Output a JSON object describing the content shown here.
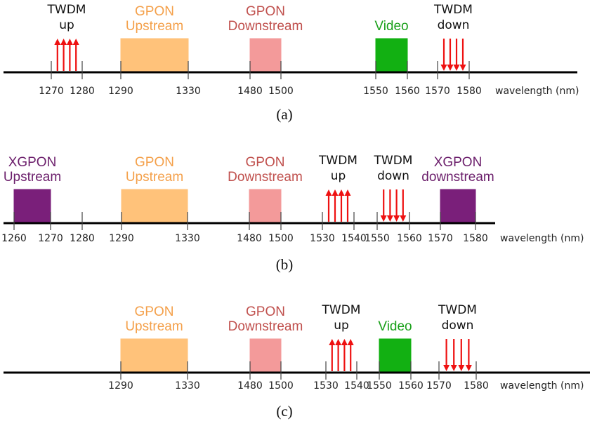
{
  "axis_unit_label": "wavelength (nm)",
  "colors": {
    "gpon_up": "#ffc27a",
    "gpon_down": "#f39a9a",
    "video": "#12b012",
    "xgpon": "#7a1f7a",
    "twdm_arrow": "#ee1111",
    "gpon_up_text": "#f4a04a",
    "gpon_down_text": "#c0504d",
    "video_text": "#1aa01a",
    "xgpon_text": "#6b1e6b"
  },
  "panels": [
    {
      "caption": "(a)",
      "ticks": [
        {
          "value": 1270,
          "label": "1270"
        },
        {
          "value": 1280,
          "label": "1280"
        },
        {
          "value": 1290,
          "label": "1290"
        },
        {
          "value": 1330,
          "label": "1330"
        },
        {
          "value": 1480,
          "label": "1480"
        },
        {
          "value": 1500,
          "label": "1500"
        },
        {
          "value": 1550,
          "label": "1550"
        },
        {
          "value": 1560,
          "label": "1560"
        },
        {
          "value": 1570,
          "label": "1570"
        },
        {
          "value": 1580,
          "label": "1580"
        }
      ],
      "bands": [
        {
          "id": "gpon-up",
          "start": 1290,
          "end": 1330,
          "color": "gpon_up",
          "text_color": "gpon_up_text",
          "label": [
            "GPON",
            "Upstream"
          ]
        },
        {
          "id": "gpon-down",
          "start": 1480,
          "end": 1500,
          "color": "gpon_down",
          "text_color": "gpon_down_text",
          "label": [
            "GPON",
            "Downstream"
          ]
        },
        {
          "id": "video",
          "start": 1550,
          "end": 1560,
          "color": "video",
          "text_color": "video_text",
          "label": [
            "Video"
          ]
        }
      ],
      "arrows": [
        {
          "id": "twdm-up",
          "start": 1270,
          "end": 1280,
          "direction": "up",
          "count": 4,
          "label": [
            "TWDM",
            "up"
          ]
        },
        {
          "id": "twdm-down",
          "start": 1570,
          "end": 1580,
          "direction": "down",
          "count": 4,
          "label": [
            "TWDM",
            "down"
          ]
        }
      ]
    },
    {
      "caption": "(b)",
      "ticks": [
        {
          "value": 1260,
          "label": "1260"
        },
        {
          "value": 1270,
          "label": "1270"
        },
        {
          "value": 1280,
          "label": "1280"
        },
        {
          "value": 1290,
          "label": "1290"
        },
        {
          "value": 1330,
          "label": "1330"
        },
        {
          "value": 1480,
          "label": "1480"
        },
        {
          "value": 1500,
          "label": "1500"
        },
        {
          "value": 1530,
          "label": "1530"
        },
        {
          "value": 1540,
          "label": "1540"
        },
        {
          "value": 1550,
          "label": "1550"
        },
        {
          "value": 1560,
          "label": "1560"
        },
        {
          "value": 1570,
          "label": "1570"
        },
        {
          "value": 1580,
          "label": "1580"
        }
      ],
      "bands": [
        {
          "id": "xgpon-up",
          "start": 1260,
          "end": 1270,
          "color": "xgpon",
          "text_color": "xgpon_text",
          "label": [
            "XGPON",
            "Upstream"
          ]
        },
        {
          "id": "gpon-up",
          "start": 1290,
          "end": 1330,
          "color": "gpon_up",
          "text_color": "gpon_up_text",
          "label": [
            "GPON",
            "Upstream"
          ]
        },
        {
          "id": "gpon-down",
          "start": 1480,
          "end": 1500,
          "color": "gpon_down",
          "text_color": "gpon_down_text",
          "label": [
            "GPON",
            "Downstream"
          ]
        },
        {
          "id": "xgpon-down",
          "start": 1570,
          "end": 1580,
          "color": "xgpon",
          "text_color": "xgpon_text",
          "label": [
            "XGPON",
            "downstream"
          ]
        }
      ],
      "arrows": [
        {
          "id": "twdm-up",
          "start": 1530,
          "end": 1540,
          "direction": "up",
          "count": 4,
          "label": [
            "TWDM",
            "up"
          ]
        },
        {
          "id": "twdm-down",
          "start": 1550,
          "end": 1560,
          "direction": "down",
          "count": 4,
          "label": [
            "TWDM",
            "down"
          ]
        }
      ]
    },
    {
      "caption": "(c)",
      "ticks": [
        {
          "value": 1290,
          "label": "1290"
        },
        {
          "value": 1330,
          "label": "1330"
        },
        {
          "value": 1480,
          "label": "1480"
        },
        {
          "value": 1500,
          "label": "1500"
        },
        {
          "value": 1530,
          "label": "1530"
        },
        {
          "value": 1540,
          "label": "1540"
        },
        {
          "value": 1550,
          "label": "1550"
        },
        {
          "value": 1560,
          "label": "1560"
        },
        {
          "value": 1570,
          "label": "1570"
        },
        {
          "value": 1580,
          "label": "1580"
        }
      ],
      "bands": [
        {
          "id": "gpon-up",
          "start": 1290,
          "end": 1330,
          "color": "gpon_up",
          "text_color": "gpon_up_text",
          "label": [
            "GPON",
            "Upstream"
          ]
        },
        {
          "id": "gpon-down",
          "start": 1480,
          "end": 1500,
          "color": "gpon_down",
          "text_color": "gpon_down_text",
          "label": [
            "GPON",
            "Downstream"
          ]
        },
        {
          "id": "video",
          "start": 1550,
          "end": 1560,
          "color": "video",
          "text_color": "video_text",
          "label": [
            "Video"
          ]
        }
      ],
      "arrows": [
        {
          "id": "twdm-up",
          "start": 1530,
          "end": 1540,
          "direction": "up",
          "count": 4,
          "label": [
            "TWDM",
            "up"
          ]
        },
        {
          "id": "twdm-down",
          "start": 1570,
          "end": 1580,
          "direction": "down",
          "count": 4,
          "label": [
            "TWDM",
            "down"
          ]
        }
      ]
    }
  ]
}
